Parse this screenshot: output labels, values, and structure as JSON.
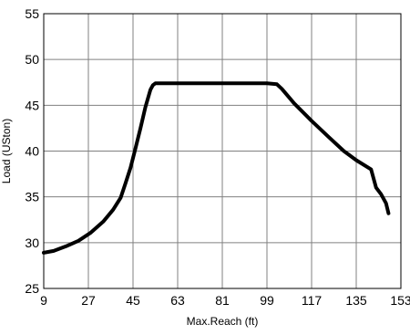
{
  "chart_data": {
    "type": "line",
    "title": "",
    "xlabel": "Max.Reach (ft)",
    "ylabel": "Load (USton)",
    "xlim": [
      9,
      153
    ],
    "ylim": [
      25,
      55
    ],
    "grid": true,
    "x_ticks": [
      9,
      27,
      45,
      63,
      81,
      99,
      117,
      135,
      153
    ],
    "y_ticks": [
      25,
      30,
      35,
      40,
      45,
      50,
      55
    ],
    "series": [
      {
        "color": "#000000",
        "x": [
          9,
          13,
          18,
          23,
          28,
          33,
          37,
          40,
          42,
          44,
          46,
          48,
          50,
          52,
          53,
          54,
          55,
          57,
          63,
          72,
          81,
          90,
          99,
          103,
          105,
          110,
          117,
          124,
          130,
          135,
          141,
          143,
          145,
          147,
          148
        ],
        "y": [
          28.9,
          29.1,
          29.6,
          30.2,
          31.1,
          32.3,
          33.6,
          34.9,
          36.5,
          38.2,
          40.3,
          42.5,
          44.8,
          46.7,
          47.2,
          47.4,
          47.4,
          47.4,
          47.4,
          47.4,
          47.4,
          47.4,
          47.4,
          47.3,
          46.8,
          45.2,
          43.3,
          41.5,
          40.0,
          39.0,
          38.0,
          36.0,
          35.3,
          34.3,
          33.2
        ]
      }
    ]
  }
}
